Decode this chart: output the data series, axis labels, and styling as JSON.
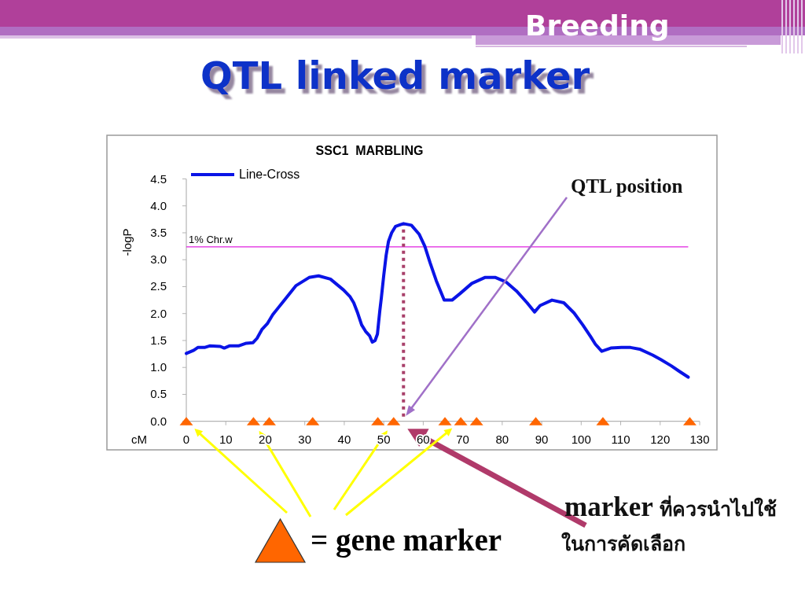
{
  "chart_data": {
    "type": "line",
    "title": "QTL linked marker",
    "subtitle": "SSC1  MARBLING",
    "xlabel": "cM",
    "ylabel": "-logP",
    "annotations": [
      "Breeding",
      "QTL position",
      "marker ที่ควรนำไปใช้\nในการคัดเลือก",
      "= gene marker"
    ],
    "series": [
      {
        "name": "Line-Cross",
        "type": "line",
        "color": "#0a14e6",
        "marker": "none",
        "line_style": "solid",
        "x": [
          0,
          1.9,
          2.9,
          4.6,
          5.9,
          8.6,
          9.6,
          10.9,
          13.2,
          15.2,
          16.9,
          17.9,
          19.2,
          20.5,
          21.9,
          23.2,
          24.5,
          27.8,
          31.1,
          33.5,
          36.5,
          39.8,
          41.4,
          42.4,
          43.4,
          44.4,
          45.4,
          46.4,
          47.1,
          47.8,
          48.4,
          48.7,
          49.0,
          49.4,
          50.0,
          50.6,
          51.2,
          52.0,
          53.0,
          55.0,
          57.0,
          59.0,
          60.4,
          61.7,
          63.3,
          65.3,
          67.3,
          69.3,
          72.3,
          75.6,
          78.3,
          80.9,
          83.6,
          86.3,
          88.2,
          89.6,
          92.6,
          95.6,
          98.2,
          100.4,
          102.4,
          103.6,
          105.2,
          107.5,
          110.2,
          112.5,
          114.8,
          118.1,
          120.1,
          122.8,
          124.8,
          127.1
        ],
        "values": [
          1.26,
          1.32,
          1.37,
          1.37,
          1.4,
          1.39,
          1.36,
          1.4,
          1.4,
          1.45,
          1.46,
          1.54,
          1.71,
          1.81,
          1.98,
          2.1,
          2.22,
          2.52,
          2.67,
          2.7,
          2.64,
          2.44,
          2.32,
          2.2,
          2.01,
          1.79,
          1.67,
          1.59,
          1.47,
          1.5,
          1.62,
          1.84,
          2.05,
          2.3,
          2.71,
          3.08,
          3.34,
          3.5,
          3.62,
          3.67,
          3.64,
          3.47,
          3.25,
          2.95,
          2.61,
          2.25,
          2.25,
          2.37,
          2.56,
          2.67,
          2.67,
          2.59,
          2.42,
          2.2,
          2.03,
          2.15,
          2.25,
          2.2,
          2.01,
          1.79,
          1.57,
          1.43,
          1.3,
          1.36,
          1.37,
          1.37,
          1.34,
          1.23,
          1.15,
          1.03,
          0.93,
          0.82
        ]
      },
      {
        "type": "scatter",
        "color": "#ff6600",
        "marker": "triangle",
        "x": [
          0,
          17,
          21,
          32,
          48.5,
          52.5,
          65.5,
          69.5,
          73.5,
          88.5,
          105.5,
          127.5
        ],
        "values": [
          0,
          0,
          0,
          0,
          0,
          0,
          0,
          0,
          0,
          0,
          0,
          0
        ]
      }
    ],
    "xlim": [
      0,
      130
    ],
    "xticks": [
      0,
      10,
      20,
      30,
      40,
      50,
      60,
      70,
      80,
      90,
      100,
      110,
      120,
      130
    ],
    "ylim": [
      0,
      4.5
    ],
    "yticks": [
      {
        "value": 0,
        "label": "0.0"
      },
      {
        "value": 0.5,
        "label": "0.5"
      },
      {
        "value": 1,
        "label": "1.0"
      },
      {
        "value": 1.5,
        "label": "1.5"
      },
      {
        "value": 2,
        "label": "2.0"
      },
      {
        "value": 2.5,
        "label": "2.5"
      },
      {
        "value": 3,
        "label": "3.0"
      },
      {
        "value": 3.5,
        "label": "3.5"
      },
      {
        "value": 4,
        "label": "4.0"
      },
      {
        "value": 4.5,
        "label": "4.5"
      }
    ],
    "ref_lines": [
      {
        "axis": "y",
        "value": 3.24,
        "label": "1% Chr.w",
        "color": "#e020e0",
        "line_style": "solid"
      },
      {
        "axis": "x",
        "value": 55,
        "color": "#a8406a",
        "line_style": "dotted"
      }
    ],
    "legend": "top left"
  }
}
